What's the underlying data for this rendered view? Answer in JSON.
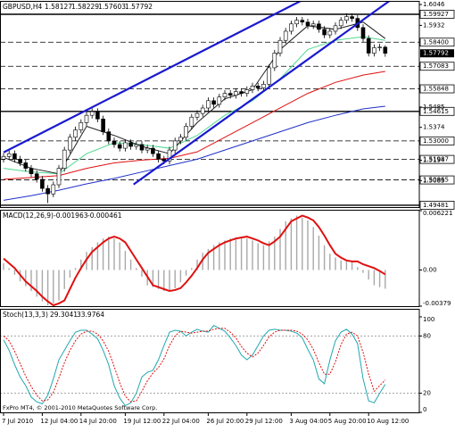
{
  "chart_data": {
    "type": "candlestick",
    "title": "GBPUSD,H4",
    "bull_color": "#ffffff",
    "bear_color": "#000000",
    "candles": {
      "open": [
        1.52,
        1.5215,
        1.523,
        1.52,
        1.518,
        1.515,
        1.512,
        1.509,
        1.504,
        1.501,
        1.506,
        1.515,
        1.525,
        1.532,
        1.536,
        1.54,
        1.544,
        1.546,
        1.542,
        1.535,
        1.53,
        1.528,
        1.526,
        1.529,
        1.527,
        1.528,
        1.525,
        1.526,
        1.523,
        1.52,
        1.519,
        1.525,
        1.53,
        1.532,
        1.538,
        1.543,
        1.545,
        1.548,
        1.552,
        1.55,
        1.554,
        1.556,
        1.555,
        1.557,
        1.556,
        1.558,
        1.56,
        1.559,
        1.561,
        1.57,
        1.578,
        1.585,
        1.59,
        1.594,
        1.596,
        1.595,
        1.593,
        1.594,
        1.591,
        1.588,
        1.59,
        1.593,
        1.596,
        1.598,
        1.597,
        1.592,
        1.586,
        1.578,
        1.581,
        1.58127
      ],
      "high": [
        1.5233,
        1.5248,
        1.5248,
        1.5218,
        1.5198,
        1.5168,
        1.5138,
        1.5108,
        1.5058,
        1.5078,
        1.5168,
        1.5268,
        1.5338,
        1.5378,
        1.5418,
        1.5458,
        1.5478,
        1.5478,
        1.5438,
        1.5368,
        1.5318,
        1.5298,
        1.5308,
        1.5308,
        1.5298,
        1.5298,
        1.5278,
        1.5278,
        1.5248,
        1.5218,
        1.5268,
        1.5318,
        1.5338,
        1.5398,
        1.5448,
        1.5468,
        1.5498,
        1.5538,
        1.5538,
        1.5558,
        1.5578,
        1.5578,
        1.5588,
        1.5588,
        1.5598,
        1.5618,
        1.5618,
        1.5628,
        1.5718,
        1.5798,
        1.5868,
        1.5918,
        1.5958,
        1.5978,
        1.5978,
        1.5968,
        1.5958,
        1.5958,
        1.5928,
        1.5918,
        1.5948,
        1.5978,
        1.5998,
        1.5998,
        1.5988,
        1.5938,
        1.5878,
        1.5828,
        1.5831,
        1.58229
      ],
      "low": [
        1.5182,
        1.5197,
        1.5182,
        1.5162,
        1.5132,
        1.5102,
        1.5072,
        1.5022,
        1.496,
        1.4992,
        1.5042,
        1.5132,
        1.5232,
        1.5302,
        1.5342,
        1.5382,
        1.5422,
        1.5402,
        1.5332,
        1.5282,
        1.5262,
        1.5242,
        1.5242,
        1.5252,
        1.5252,
        1.5232,
        1.5232,
        1.5212,
        1.5182,
        1.5172,
        1.5172,
        1.5232,
        1.5282,
        1.5302,
        1.5362,
        1.5412,
        1.5432,
        1.5462,
        1.5482,
        1.5482,
        1.5522,
        1.5532,
        1.5532,
        1.5542,
        1.5542,
        1.5562,
        1.5572,
        1.5572,
        1.5592,
        1.5682,
        1.5762,
        1.5832,
        1.5882,
        1.5922,
        1.5932,
        1.5912,
        1.5912,
        1.5892,
        1.5862,
        1.5862,
        1.5882,
        1.5912,
        1.5942,
        1.5952,
        1.5902,
        1.5842,
        1.5762,
        1.5762,
        1.5792,
        1.57603
      ],
      "close": [
        1.5215,
        1.523,
        1.52,
        1.518,
        1.515,
        1.512,
        1.509,
        1.504,
        1.501,
        1.506,
        1.515,
        1.525,
        1.532,
        1.536,
        1.54,
        1.544,
        1.546,
        1.542,
        1.535,
        1.53,
        1.528,
        1.526,
        1.529,
        1.527,
        1.528,
        1.525,
        1.526,
        1.523,
        1.52,
        1.519,
        1.525,
        1.53,
        1.532,
        1.538,
        1.543,
        1.545,
        1.548,
        1.552,
        1.55,
        1.554,
        1.556,
        1.555,
        1.557,
        1.556,
        1.558,
        1.56,
        1.559,
        1.561,
        1.57,
        1.578,
        1.585,
        1.59,
        1.594,
        1.596,
        1.595,
        1.593,
        1.594,
        1.591,
        1.588,
        1.59,
        1.593,
        1.596,
        1.598,
        1.597,
        1.592,
        1.586,
        1.578,
        1.581,
        1.5813,
        1.57792
      ]
    },
    "ylim": [
      1.4938,
      1.6061
    ],
    "yticks": [
      1.6046,
      1.5932,
      1.5485,
      1.5374,
      1.5194,
      1.5083
    ],
    "levels": [
      {
        "value": 1.59927,
        "style": "solid"
      },
      {
        "value": 1.584,
        "label": "1.58400",
        "style": "dashed"
      },
      {
        "value": 1.57083,
        "style": "dashed"
      },
      {
        "value": 1.55848,
        "style": "dashed"
      },
      {
        "value": 1.54615,
        "style": "solid"
      },
      {
        "value": 1.53,
        "label": "1.53000",
        "style": "dashed"
      },
      {
        "value": 1.51987,
        "style": "dashed"
      },
      {
        "value": 1.50865,
        "style": "dashed"
      },
      {
        "value": 1.49481,
        "style": "solid"
      }
    ],
    "moving_averages": [
      {
        "color": "#2030c8",
        "x": [
          0,
          5,
          10,
          15,
          20,
          25,
          30,
          35,
          40,
          45,
          50,
          55,
          60,
          65,
          69
        ],
        "values": [
          1.4975,
          1.5,
          1.503,
          1.5065,
          1.5095,
          1.513,
          1.5165,
          1.52,
          1.525,
          1.53,
          1.535,
          1.54,
          1.544,
          1.5475,
          1.549
        ]
      },
      {
        "color": "#e01010",
        "x": [
          0,
          5,
          10,
          15,
          20,
          25,
          30,
          35,
          40,
          45,
          50,
          55,
          60,
          65,
          69
        ],
        "values": [
          1.509,
          1.51,
          1.511,
          1.515,
          1.518,
          1.5195,
          1.5205,
          1.524,
          1.532,
          1.54,
          1.548,
          1.556,
          1.562,
          1.566,
          1.568
        ]
      },
      {
        "color": "#50d890",
        "x": [
          0,
          5,
          10,
          15,
          20,
          25,
          30,
          35,
          40,
          45,
          50,
          55,
          60,
          65,
          69
        ],
        "values": [
          1.515,
          1.513,
          1.512,
          1.523,
          1.529,
          1.528,
          1.526,
          1.533,
          1.544,
          1.552,
          1.564,
          1.58,
          1.585,
          1.587,
          1.585
        ]
      },
      {
        "color": "#202020",
        "x": [
          0,
          5,
          10,
          15,
          20,
          25,
          30,
          35,
          40,
          45,
          50,
          55,
          60,
          65,
          69
        ],
        "values": [
          1.521,
          1.515,
          1.512,
          1.538,
          1.533,
          1.527,
          1.523,
          1.54,
          1.553,
          1.558,
          1.58,
          1.593,
          1.591,
          1.595,
          1.586
        ]
      }
    ],
    "trendlines": [
      {
        "color": "#1a1ad0",
        "x": [
          0,
          54
        ],
        "y": [
          1.5237,
          1.607
        ]
      },
      {
        "color": "#1a1ad0",
        "x": [
          23.5,
          70
        ],
        "y": [
          1.5062,
          1.6071
        ]
      }
    ],
    "xticks": [
      {
        "value": 0,
        "label": "7 Jul 2010"
      },
      {
        "value": 7,
        "label": "12 Jul 04:00"
      },
      {
        "value": 14,
        "label": "14 Jul 20:00"
      },
      {
        "value": 22,
        "label": "19 Jul 12:00"
      },
      {
        "value": 29,
        "label": "22 Jul 04:00"
      },
      {
        "value": 37,
        "label": "26 Jul 20:00"
      },
      {
        "value": 44,
        "label": "29 Jul 12:00"
      },
      {
        "value": 52,
        "label": "3 Aug 04:00"
      },
      {
        "value": 59,
        "label": "5 Aug 20:00"
      },
      {
        "value": 66,
        "label": "10 Aug 12:00"
      }
    ],
    "macd": {
      "type": "macd",
      "label": "MACD(12,26,9)",
      "ylim": [
        -0.00379,
        0.006221
      ],
      "yticks": [
        0.006221,
        {
          "value": 0,
          "label": "0.00"
        },
        -0.00379
      ],
      "histogram": {
        "color": "#a8a8a8",
        "values": [
          0.0007,
          0.0002,
          -0.0005,
          -0.0012,
          -0.0017,
          -0.0022,
          -0.0028,
          -0.0033,
          -0.0037,
          -0.0035,
          -0.0032,
          -0.002,
          -0.0008,
          0.0002,
          0.0011,
          0.0019,
          0.0024,
          0.0029,
          0.0033,
          0.0035,
          0.0033,
          0.0029,
          0.002,
          0.0011,
          0.0002,
          -0.0007,
          -0.0016,
          -0.0018,
          -0.002,
          -0.0022,
          -0.0021,
          -0.0019,
          -0.0013,
          -0.0006,
          0.0002,
          0.0011,
          0.0018,
          0.0022,
          0.0026,
          0.0029,
          0.0031,
          0.0033,
          0.0034,
          0.0035,
          0.0033,
          0.0031,
          0.0028,
          0.0026,
          0.003,
          0.0035,
          0.0043,
          0.0051,
          0.0054,
          0.0057,
          0.0055,
          0.0052,
          0.0045,
          0.0036,
          0.0026,
          0.0017,
          0.0013,
          0.001,
          0.0009,
          0.0009,
          0.0003,
          -0.0003,
          -0.001,
          -0.0016,
          -0.0018,
          -0.001963
        ]
      },
      "signal": {
        "color": "#e01010",
        "values": [
          0.0012,
          0.0007,
          0.0002,
          -0.0005,
          -0.0012,
          -0.0017,
          -0.0022,
          -0.0028,
          -0.0033,
          -0.0037,
          -0.0035,
          -0.0032,
          -0.002,
          -0.0008,
          0.0002,
          0.0011,
          0.0019,
          0.0024,
          0.0029,
          0.0033,
          0.0035,
          0.0033,
          0.0029,
          0.002,
          0.0011,
          0.0002,
          -0.0007,
          -0.0016,
          -0.0018,
          -0.002,
          -0.0022,
          -0.0021,
          -0.0019,
          -0.0013,
          -0.0006,
          0.0002,
          0.0011,
          0.0018,
          0.0022,
          0.0026,
          0.0029,
          0.0031,
          0.0033,
          0.0034,
          0.0035,
          0.0033,
          0.0031,
          0.0028,
          0.0026,
          0.003,
          0.0035,
          0.0043,
          0.0051,
          0.0054,
          0.0057,
          0.0055,
          0.0052,
          0.0045,
          0.0036,
          0.0026,
          0.0017,
          0.0013,
          0.001,
          0.0009,
          0.0009,
          0.0006,
          0.0004,
          0.0002,
          -0.0001,
          -0.000461
        ]
      }
    },
    "stochastic": {
      "type": "stochastic",
      "label": "Stoch(13,3,3)",
      "ylim": [
        0,
        100
      ],
      "yticks": [
        100,
        80,
        20,
        0
      ],
      "main": {
        "color": "#20a8b0",
        "values": [
          76,
          65,
          50,
          37,
          28,
          16,
          11,
          9,
          18,
          35,
          55,
          65,
          75,
          84,
          86,
          86,
          82,
          77,
          65,
          50,
          28,
          15,
          7,
          10,
          20,
          37,
          42,
          44,
          55,
          70,
          84,
          86,
          85,
          80,
          84,
          87,
          85,
          84,
          91,
          88,
          85,
          78,
          70,
          60,
          55,
          60,
          70,
          80,
          86,
          87,
          86,
          86,
          85,
          83,
          78,
          66,
          55,
          35,
          30,
          55,
          75,
          84,
          87,
          82,
          72,
          35,
          12,
          10,
          20,
          29.3041
        ]
      },
      "signal": {
        "color": "#e01010",
        "values": [
          80,
          75,
          64,
          51,
          38,
          27,
          18,
          12,
          13,
          21,
          36,
          52,
          65,
          75,
          82,
          85,
          85,
          82,
          75,
          64,
          48,
          31,
          17,
          11,
          12,
          22,
          33,
          41,
          47,
          56,
          70,
          80,
          85,
          84,
          83,
          84,
          85,
          85,
          87,
          88,
          88,
          84,
          78,
          69,
          62,
          58,
          62,
          70,
          79,
          84,
          86,
          86,
          86,
          85,
          82,
          76,
          66,
          52,
          40,
          40,
          53,
          71,
          82,
          84,
          80,
          63,
          40,
          22,
          28,
          33.9764
        ]
      }
    },
    "footer": "FxPro MT4, © 2001-2010 MetaQuotes Software Corp."
  }
}
